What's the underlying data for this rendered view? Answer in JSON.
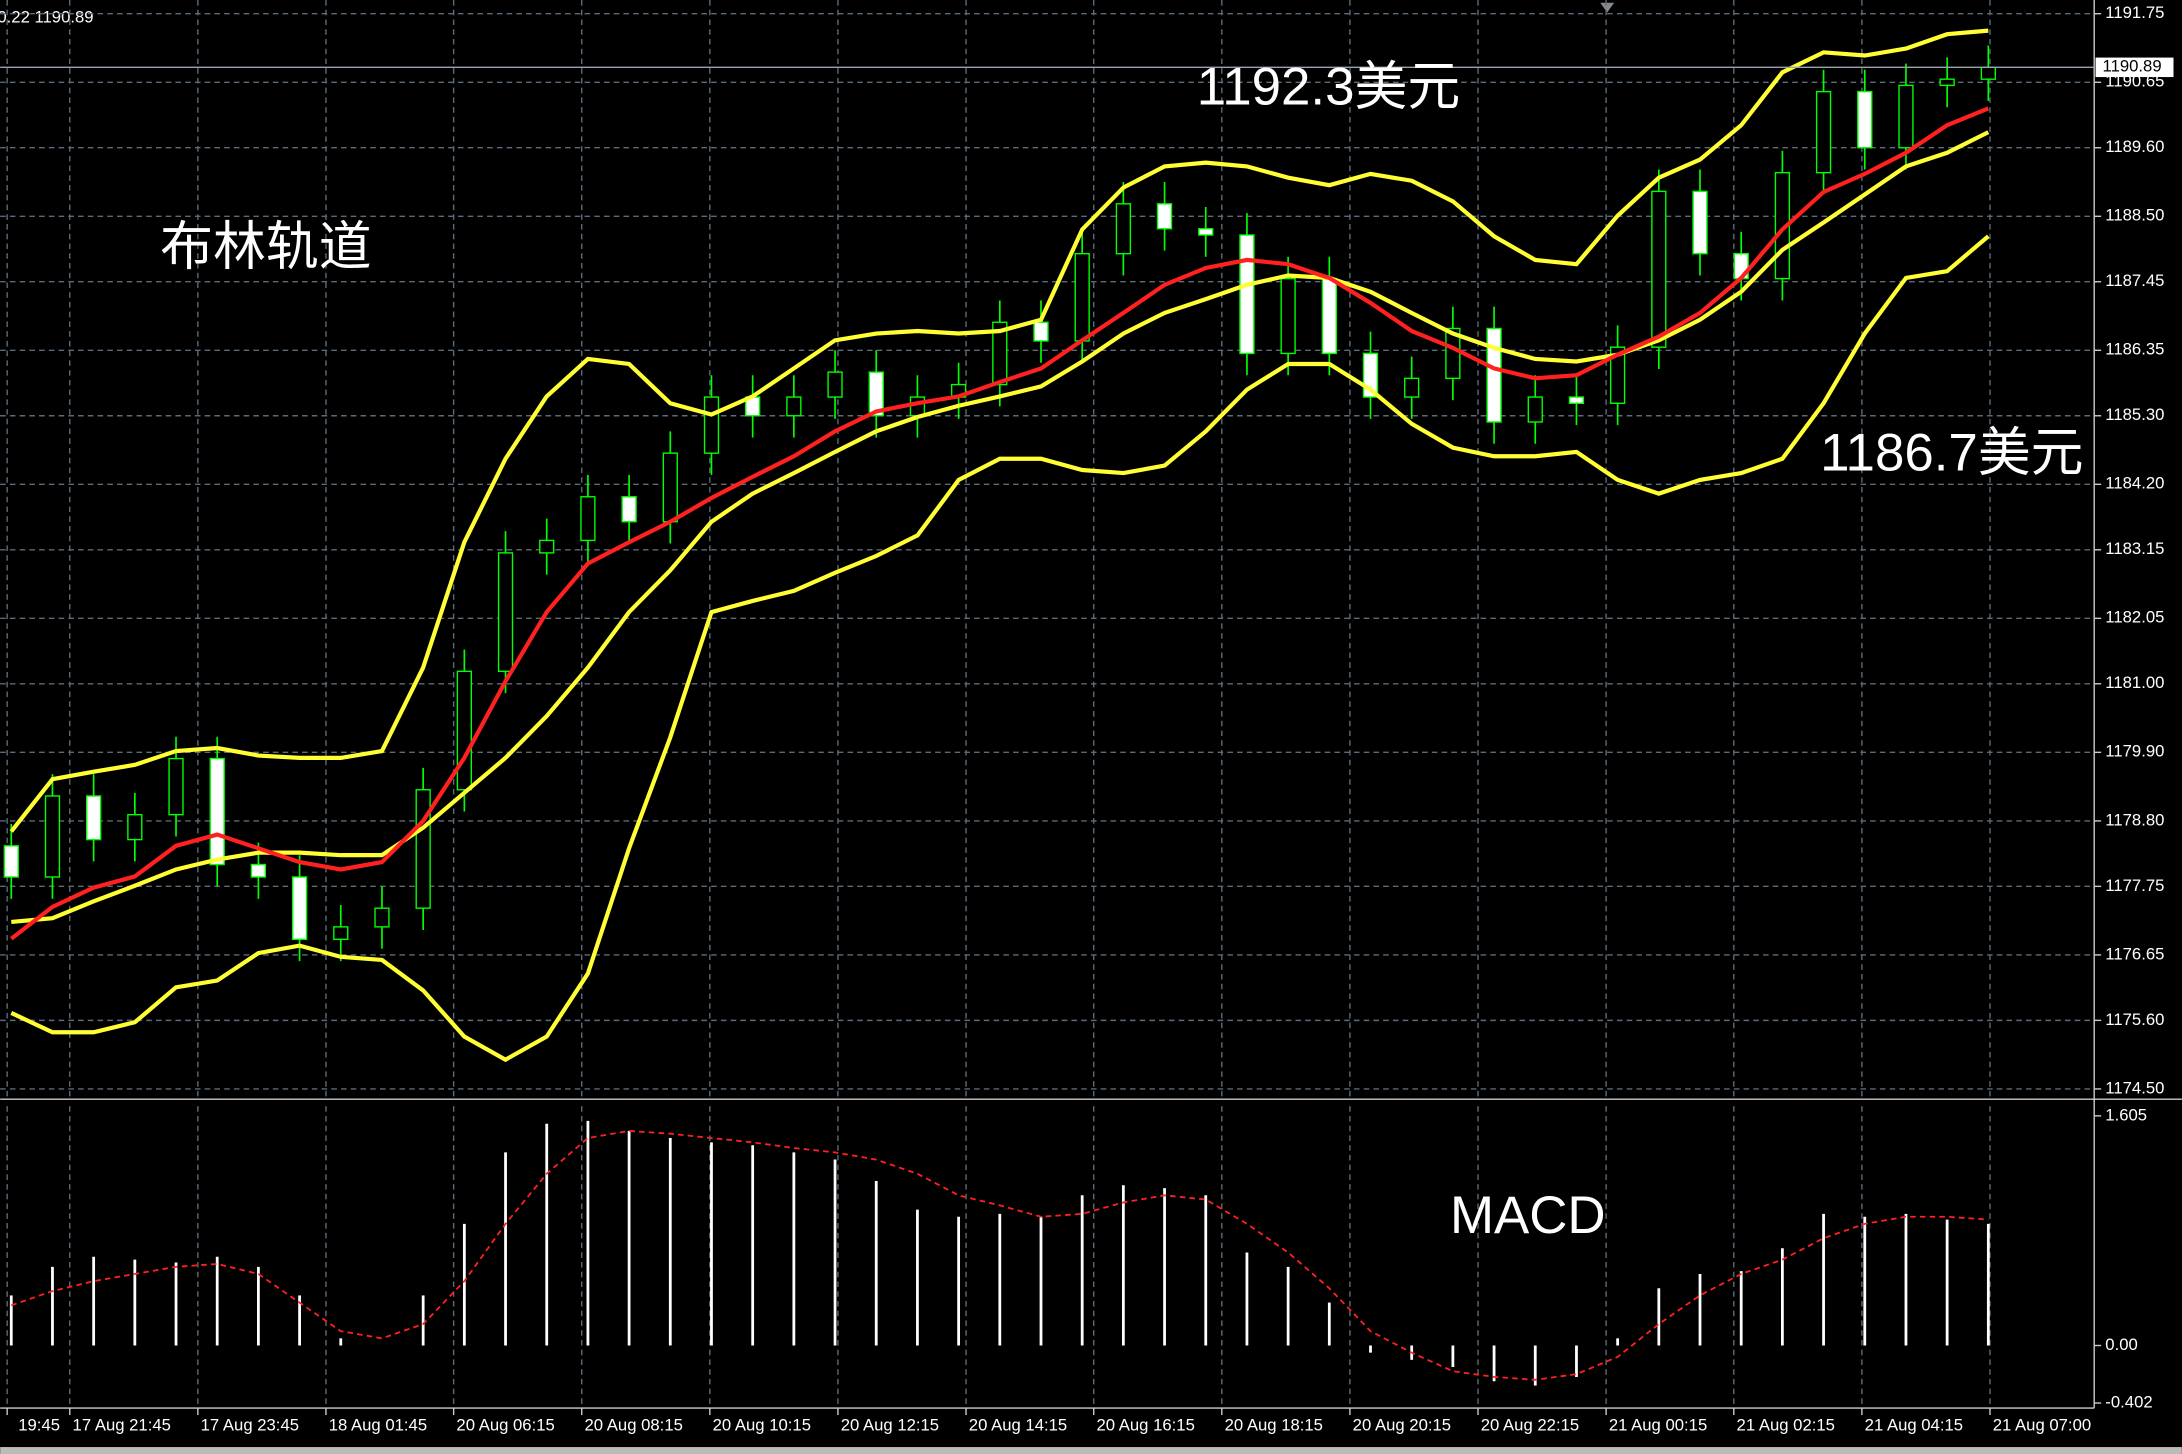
{
  "chart_data": [
    {
      "type": "candlestick",
      "header": "0.22 1190.89",
      "annotations": [
        "布林轨道",
        "1192.3美元",
        "1186.7美元"
      ],
      "current_price": 1190.89,
      "grid": true,
      "xlim": [
        -0.27,
        50.57
      ],
      "xticks": [
        {
          "value": -0.1,
          "label": "19:45"
        },
        {
          "value": 1.42,
          "label": "17 Aug 21:45"
        },
        {
          "value": 4.53,
          "label": "17 Aug 23:45"
        },
        {
          "value": 7.64,
          "label": "18 Aug 01:45"
        },
        {
          "value": 10.74,
          "label": "20 Aug 06:15"
        },
        {
          "value": 13.85,
          "label": "20 Aug 08:15"
        },
        {
          "value": 16.96,
          "label": "20 Aug 10:15"
        },
        {
          "value": 20.07,
          "label": "20 Aug 12:15"
        },
        {
          "value": 23.18,
          "label": "20 Aug 14:15"
        },
        {
          "value": 26.28,
          "label": "20 Aug 16:15"
        },
        {
          "value": 29.39,
          "label": "20 Aug 18:15"
        },
        {
          "value": 32.5,
          "label": "20 Aug 20:15"
        },
        {
          "value": 35.61,
          "label": "20 Aug 22:15"
        },
        {
          "value": 38.72,
          "label": "21 Aug 00:15"
        },
        {
          "value": 41.82,
          "label": "21 Aug 02:15"
        },
        {
          "value": 44.93,
          "label": "21 Aug 04:15"
        },
        {
          "value": 48.04,
          "label": "21 Aug 07:00"
        }
      ],
      "ylim": [
        1174.38,
        1191.97
      ],
      "yticks": [
        1191.75,
        1190.65,
        {
          "value": 1189.6,
          "label": "1189.60"
        },
        {
          "value": 1188.5,
          "label": "1188.50"
        },
        1187.45,
        1186.35,
        {
          "value": 1185.3,
          "label": "1185.30"
        },
        {
          "value": 1184.2,
          "label": "1184.20"
        },
        1183.15,
        1182.05,
        {
          "value": 1181,
          "label": "1181.00"
        },
        {
          "value": 1179.9,
          "label": "1179.90"
        },
        {
          "value": 1178.8,
          "label": "1178.80"
        },
        1177.75,
        1176.65,
        {
          "value": 1175.6,
          "label": "1175.60"
        },
        {
          "value": 1174.5,
          "label": "1174.50"
        }
      ],
      "candles": {
        "color": "#00ff00",
        "open": [
          1178.4,
          1177.9,
          1179.2,
          1178.5,
          1178.9,
          1179.8,
          1178.1,
          1177.9,
          1176.9,
          1177.1,
          1177.4,
          1179.3,
          1181.2,
          1183.1,
          1183.3,
          1184.0,
          1183.6,
          1184.7,
          1185.6,
          1185.3,
          1185.6,
          1186.0,
          1185.3,
          1185.6,
          1185.8,
          1186.8,
          1186.5,
          1187.9,
          1188.7,
          1188.3,
          1188.2,
          1186.3,
          1187.5,
          1186.3,
          1185.6,
          1185.9,
          1186.7,
          1185.2,
          1185.6,
          1185.5,
          1186.4,
          1188.9,
          1187.9,
          1187.5,
          1189.2,
          1190.5,
          1189.6,
          1190.6,
          1190.7
        ],
        "high": [
          1178.75,
          1179.55,
          1179.55,
          1179.25,
          1180.15,
          1180.15,
          1178.45,
          1178.25,
          1177.45,
          1177.75,
          1179.65,
          1181.55,
          1183.45,
          1183.65,
          1184.35,
          1184.35,
          1185.05,
          1185.95,
          1185.95,
          1185.95,
          1186.35,
          1186.35,
          1185.95,
          1186.15,
          1187.15,
          1187.15,
          1188.25,
          1189.05,
          1189.05,
          1188.65,
          1188.55,
          1187.85,
          1187.85,
          1186.65,
          1186.25,
          1187.05,
          1187.05,
          1185.95,
          1185.95,
          1186.75,
          1189.25,
          1189.25,
          1188.25,
          1189.55,
          1190.85,
          1190.85,
          1190.95,
          1191.05,
          1191.24
        ],
        "low": [
          1177.55,
          1177.55,
          1178.15,
          1178.15,
          1178.55,
          1177.75,
          1177.55,
          1176.55,
          1176.55,
          1176.75,
          1177.05,
          1178.95,
          1180.85,
          1182.75,
          1182.95,
          1183.25,
          1183.25,
          1184.35,
          1184.95,
          1184.95,
          1185.25,
          1184.95,
          1184.95,
          1185.25,
          1185.45,
          1186.15,
          1186.15,
          1187.55,
          1187.95,
          1187.85,
          1185.95,
          1185.95,
          1185.95,
          1185.25,
          1185.25,
          1185.55,
          1184.85,
          1184.85,
          1185.15,
          1185.15,
          1186.05,
          1187.55,
          1187.15,
          1187.15,
          1188.85,
          1189.25,
          1189.25,
          1190.25,
          1190.35
        ],
        "close": [
          1177.9,
          1179.2,
          1178.5,
          1178.9,
          1179.8,
          1178.1,
          1177.9,
          1176.9,
          1177.1,
          1177.4,
          1179.3,
          1181.2,
          1183.1,
          1183.3,
          1184.0,
          1183.6,
          1184.7,
          1185.6,
          1185.3,
          1185.6,
          1186.0,
          1185.3,
          1185.6,
          1185.8,
          1186.8,
          1186.5,
          1187.9,
          1188.7,
          1188.3,
          1188.2,
          1186.3,
          1187.5,
          1186.3,
          1185.6,
          1185.9,
          1186.7,
          1185.2,
          1185.6,
          1185.5,
          1186.4,
          1188.9,
          1187.9,
          1187.5,
          1189.2,
          1190.5,
          1189.6,
          1190.6,
          1190.7,
          1190.89
        ]
      },
      "series": [
        {
          "color": "#ffff33",
          "values": [
            1178.63,
            1179.47,
            1179.59,
            1179.7,
            1179.92,
            1179.97,
            1179.85,
            1179.81,
            1179.81,
            1179.92,
            1181.26,
            1183.27,
            1184.61,
            1185.61,
            1186.21,
            1186.13,
            1185.5,
            1185.32,
            1185.61,
            1186.06,
            1186.51,
            1186.62,
            1186.66,
            1186.62,
            1186.66,
            1186.84,
            1188.29,
            1188.96,
            1189.3,
            1189.36,
            1189.3,
            1189.12,
            1189.0,
            1189.18,
            1189.07,
            1188.74,
            1188.18,
            1187.8,
            1187.73,
            1188.51,
            1189.12,
            1189.41,
            1189.96,
            1190.81,
            1191.13,
            1191.08,
            1191.19,
            1191.42,
            1191.48
          ]
        },
        {
          "color": "#ffff33",
          "values": [
            1177.18,
            1177.24,
            1177.51,
            1177.76,
            1178.02,
            1178.18,
            1178.29,
            1178.29,
            1178.25,
            1178.25,
            1178.69,
            1179.25,
            1179.81,
            1180.48,
            1181.26,
            1182.15,
            1182.82,
            1183.6,
            1184.05,
            1184.38,
            1184.72,
            1185.05,
            1185.28,
            1185.46,
            1185.61,
            1185.77,
            1186.17,
            1186.62,
            1186.95,
            1187.17,
            1187.4,
            1187.55,
            1187.51,
            1187.29,
            1186.95,
            1186.62,
            1186.39,
            1186.21,
            1186.17,
            1186.28,
            1186.51,
            1186.84,
            1187.29,
            1187.96,
            1188.4,
            1188.85,
            1189.3,
            1189.52,
            1189.85
          ]
        },
        {
          "color": "#ffff33",
          "values": [
            1175.72,
            1175.41,
            1175.41,
            1175.57,
            1176.13,
            1176.24,
            1176.68,
            1176.8,
            1176.62,
            1176.57,
            1176.08,
            1175.34,
            1174.97,
            1175.34,
            1176.35,
            1178.36,
            1180.14,
            1182.15,
            1182.33,
            1182.49,
            1182.78,
            1183.05,
            1183.38,
            1184.27,
            1184.61,
            1184.61,
            1184.43,
            1184.38,
            1184.5,
            1185.05,
            1185.72,
            1186.13,
            1186.13,
            1185.72,
            1185.17,
            1184.79,
            1184.65,
            1184.65,
            1184.72,
            1184.27,
            1184.05,
            1184.27,
            1184.38,
            1184.61,
            1185.5,
            1186.62,
            1187.51,
            1187.62,
            1188.18
          ]
        },
        {
          "color": "#ff2020",
          "values": [
            1176.91,
            1177.42,
            1177.73,
            1177.91,
            1178.4,
            1178.58,
            1178.36,
            1178.14,
            1178.02,
            1178.14,
            1178.8,
            1179.81,
            1181.04,
            1182.15,
            1182.93,
            1183.27,
            1183.6,
            1183.98,
            1184.32,
            1184.65,
            1185.05,
            1185.37,
            1185.5,
            1185.61,
            1185.84,
            1186.06,
            1186.51,
            1186.95,
            1187.4,
            1187.67,
            1187.8,
            1187.73,
            1187.51,
            1187.11,
            1186.66,
            1186.39,
            1186.06,
            1185.9,
            1185.95,
            1186.28,
            1186.57,
            1186.95,
            1187.51,
            1188.29,
            1188.89,
            1189.18,
            1189.52,
            1189.96,
            1190.23
          ]
        }
      ]
    },
    {
      "type": "bar",
      "annotation": "MACD",
      "color": "#ffffff",
      "xlim": [
        -0.27,
        50.57
      ],
      "ylim": [
        -0.418,
        1.673
      ],
      "yticks": [
        1.605,
        {
          "value": 0,
          "label": "0.00"
        },
        -0.402
      ],
      "values": [
        0.35,
        0.55,
        0.62,
        0.6,
        0.58,
        0.62,
        0.55,
        0.35,
        0.05,
        0.0,
        0.35,
        0.85,
        1.35,
        1.55,
        1.57,
        1.5,
        1.45,
        1.42,
        1.4,
        1.35,
        1.3,
        1.15,
        0.95,
        0.9,
        0.92,
        0.9,
        1.05,
        1.12,
        1.1,
        1.05,
        0.65,
        0.55,
        0.3,
        -0.05,
        -0.1,
        -0.15,
        -0.25,
        -0.28,
        -0.22,
        0.05,
        0.4,
        0.5,
        0.52,
        0.68,
        0.92,
        0.9,
        0.92,
        0.88,
        0.85
      ],
      "signal": {
        "color": "#ff2020",
        "values": [
          0.28,
          0.38,
          0.45,
          0.5,
          0.55,
          0.57,
          0.5,
          0.3,
          0.1,
          0.05,
          0.15,
          0.45,
          0.85,
          1.2,
          1.45,
          1.5,
          1.48,
          1.45,
          1.42,
          1.38,
          1.35,
          1.3,
          1.2,
          1.05,
          0.98,
          0.9,
          0.92,
          1.0,
          1.05,
          1.02,
          0.85,
          0.65,
          0.4,
          0.1,
          -0.05,
          -0.18,
          -0.22,
          -0.24,
          -0.2,
          -0.08,
          0.15,
          0.35,
          0.5,
          0.6,
          0.75,
          0.85,
          0.9,
          0.9,
          0.88
        ]
      }
    }
  ]
}
